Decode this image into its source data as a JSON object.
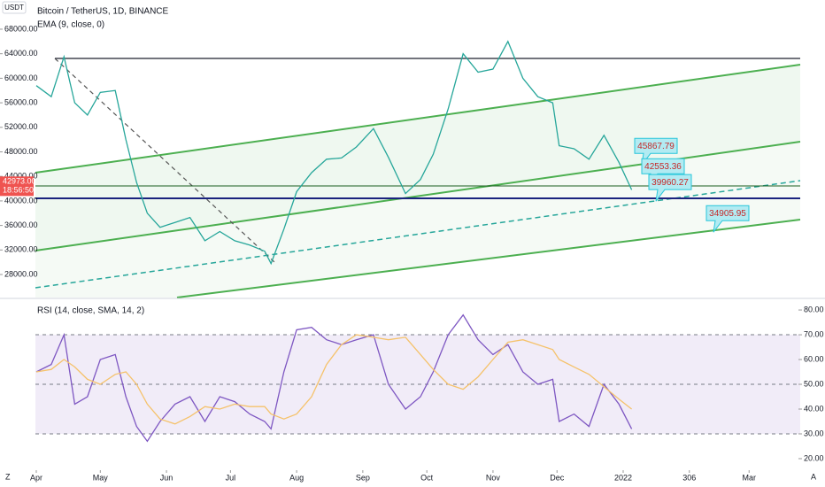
{
  "header": {
    "symbol": "Bitcoin / TetherUS, 1D, BINANCE",
    "indicator": "EMA (9, close, 0)",
    "currency": "USDT",
    "controls": [
      "Z",
      "A"
    ]
  },
  "chart_data": [
    {
      "type": "line",
      "title": "Bitcoin / TetherUS, 1D, BINANCE",
      "x": [
        0,
        7,
        13,
        18,
        24,
        30,
        37,
        42,
        47,
        52,
        58,
        65,
        72,
        79,
        86,
        93,
        100,
        107,
        110,
        116,
        122,
        129,
        136,
        143,
        150,
        158,
        165,
        173,
        180,
        186,
        193,
        200,
        207,
        214,
        221,
        228,
        235,
        242,
        245,
        252,
        259,
        266,
        273,
        279
      ],
      "series": [
        {
          "color": "#26a69a",
          "values": [
            58800,
            57000,
            63500,
            56000,
            54000,
            57700,
            58000,
            50000,
            43000,
            38000,
            35700,
            36500,
            37300,
            33500,
            35000,
            33500,
            32800,
            31800,
            29800,
            35400,
            41500,
            44600,
            46800,
            47000,
            48800,
            51800,
            47100,
            41200,
            43500,
            47600,
            55000,
            64000,
            61000,
            61500,
            66000,
            60000,
            57000,
            56000,
            49000,
            48500,
            46800,
            50700,
            46300,
            41800
          ]
        }
      ],
      "xlim": [
        -17,
        348
      ],
      "ylim": [
        24250,
        72760
      ],
      "yticks": [
        {
          "value": 28000,
          "label": "28000.00"
        },
        {
          "value": 32000,
          "label": "32000.00"
        },
        {
          "value": 36000,
          "label": "36000.00"
        },
        {
          "value": 40000,
          "label": "40000.00"
        },
        {
          "value": 44000,
          "label": "44000.00"
        },
        {
          "value": 48000,
          "label": "48000.00"
        },
        {
          "value": 52000,
          "label": "52000.00"
        },
        {
          "value": 56000,
          "label": "56000.00"
        },
        {
          "value": 60000,
          "label": "60000.00"
        },
        {
          "value": 64000,
          "label": "64000.00"
        },
        {
          "value": 68000,
          "label": "68000.00"
        }
      ],
      "last_price": {
        "value": 42973,
        "label": "42973.00"
      },
      "countdown": "18:56:50",
      "callouts": [
        45867.79,
        42553.36,
        39960.27,
        34905.95
      ]
    },
    {
      "type": "line",
      "title": "RSI (14, close, SMA, 14, 2)",
      "x": [
        0,
        7,
        13,
        18,
        24,
        30,
        37,
        42,
        47,
        52,
        58,
        65,
        72,
        79,
        86,
        93,
        100,
        107,
        110,
        116,
        122,
        129,
        136,
        143,
        150,
        158,
        165,
        173,
        180,
        186,
        193,
        200,
        207,
        214,
        221,
        228,
        235,
        242,
        245,
        252,
        259,
        266,
        273,
        279
      ],
      "series": [
        {
          "color": "#7e57c2",
          "values": [
            55,
            58,
            70,
            42,
            45,
            60,
            62,
            45,
            33,
            27,
            35,
            42,
            45,
            35,
            45,
            43,
            38,
            35,
            32,
            55,
            72,
            73,
            68,
            66,
            68,
            70,
            50,
            40,
            45,
            55,
            70,
            78,
            68,
            62,
            66,
            55,
            50,
            52,
            35,
            38,
            33,
            50,
            42,
            32
          ]
        },
        {
          "color": "#f5c26b",
          "values": [
            55,
            56,
            60,
            57,
            52,
            50,
            54,
            55,
            50,
            42,
            36,
            34,
            37,
            41,
            40,
            42,
            41,
            41,
            38,
            36,
            38,
            45,
            58,
            66,
            70,
            69,
            68,
            69,
            62,
            56,
            50,
            48,
            53,
            60,
            67,
            68,
            66,
            64,
            60,
            57,
            54,
            49,
            44,
            40
          ]
        }
      ],
      "xlim": [
        -17,
        348
      ],
      "ylim": [
        15.7,
        83.6
      ],
      "yticks": [
        {
          "value": 20,
          "label": "20.00"
        },
        {
          "value": 30,
          "label": "30.00"
        },
        {
          "value": 40,
          "label": "40.00"
        },
        {
          "value": 50,
          "label": "50.00"
        },
        {
          "value": 60,
          "label": "60.00"
        },
        {
          "value": 70,
          "label": "70.00"
        },
        {
          "value": 80,
          "label": "80.00"
        }
      ],
      "band": [
        30,
        70
      ],
      "levels": [
        30,
        50,
        70
      ],
      "xticks": [
        {
          "value": 0,
          "label": "Apr"
        },
        {
          "value": 30,
          "label": "May"
        },
        {
          "value": 61,
          "label": "Jun"
        },
        {
          "value": 91,
          "label": "Jul"
        },
        {
          "value": 122,
          "label": "Aug"
        },
        {
          "value": 153,
          "label": "Sep"
        },
        {
          "value": 183,
          "label": "Oct"
        },
        {
          "value": 214,
          "label": "Nov"
        },
        {
          "value": 244,
          "label": "Dec"
        },
        {
          "value": 275,
          "label": "2022"
        },
        306,
        {
          "value": 334,
          "label": "Mar"
        }
      ]
    }
  ]
}
